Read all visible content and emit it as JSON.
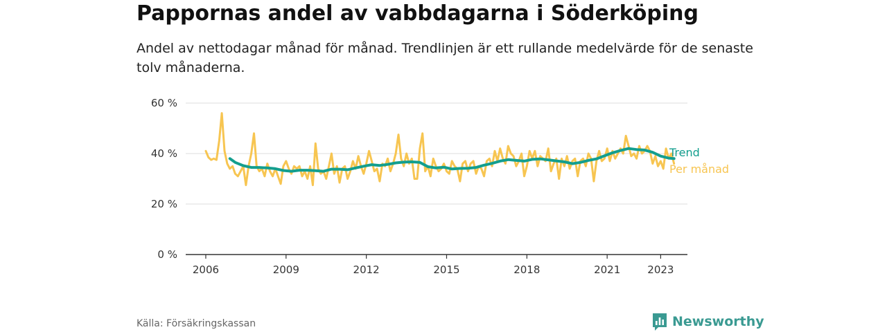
{
  "chart_data": {
    "type": "line",
    "title": "Pappornas andel av vabbdagarna i Söderköping",
    "subtitle": "Andel av nettodagar månad för månad. Trendlinjen är ett rullande medelvärde för de senaste tolv månaderna.",
    "xlabel": "",
    "ylabel": "",
    "x_ticks": [
      2006,
      2009,
      2012,
      2015,
      2018,
      2021,
      2023
    ],
    "y_ticks": [
      0,
      20,
      40,
      60
    ],
    "y_tick_labels": [
      "0 %",
      "20 %",
      "40 %",
      "60 %"
    ],
    "ylim": [
      0,
      60
    ],
    "xlim": [
      2005.25,
      2024.0
    ],
    "grid": true,
    "legend": "inline labels at right end of lines",
    "series": [
      {
        "name": "Trend",
        "color": "#139e8e",
        "points": [
          [
            2006.9,
            38
          ],
          [
            2007.1,
            36.5
          ],
          [
            2007.4,
            35.2
          ],
          [
            2007.7,
            34.5
          ],
          [
            2008.0,
            34.5
          ],
          [
            2008.3,
            34.3
          ],
          [
            2008.6,
            34.0
          ],
          [
            2008.9,
            33.3
          ],
          [
            2009.2,
            33.0
          ],
          [
            2009.5,
            33.4
          ],
          [
            2009.8,
            33.4
          ],
          [
            2010.1,
            33.2
          ],
          [
            2010.4,
            33.0
          ],
          [
            2010.7,
            33.8
          ],
          [
            2011.0,
            33.8
          ],
          [
            2011.3,
            33.6
          ],
          [
            2011.6,
            34.3
          ],
          [
            2011.9,
            35.0
          ],
          [
            2012.2,
            35.6
          ],
          [
            2012.5,
            35.3
          ],
          [
            2012.8,
            35.7
          ],
          [
            2013.1,
            36.3
          ],
          [
            2013.4,
            36.6
          ],
          [
            2013.7,
            36.7
          ],
          [
            2014.0,
            36.5
          ],
          [
            2014.3,
            34.8
          ],
          [
            2014.6,
            34.3
          ],
          [
            2014.9,
            34.6
          ],
          [
            2015.2,
            33.9
          ],
          [
            2015.5,
            34.1
          ],
          [
            2015.8,
            34.2
          ],
          [
            2016.1,
            34.5
          ],
          [
            2016.4,
            35.4
          ],
          [
            2016.7,
            36.1
          ],
          [
            2017.0,
            37.0
          ],
          [
            2017.3,
            37.6
          ],
          [
            2017.6,
            37.3
          ],
          [
            2017.9,
            37.0
          ],
          [
            2018.2,
            37.7
          ],
          [
            2018.5,
            37.9
          ],
          [
            2018.8,
            37.5
          ],
          [
            2019.1,
            37.1
          ],
          [
            2019.4,
            36.7
          ],
          [
            2019.7,
            36.0
          ],
          [
            2020.0,
            36.5
          ],
          [
            2020.3,
            37.3
          ],
          [
            2020.6,
            37.9
          ],
          [
            2020.9,
            39.1
          ],
          [
            2021.2,
            40.3
          ],
          [
            2021.5,
            41.2
          ],
          [
            2021.8,
            42.0
          ],
          [
            2022.1,
            41.6
          ],
          [
            2022.4,
            41.4
          ],
          [
            2022.7,
            40.5
          ],
          [
            2023.0,
            39.0
          ],
          [
            2023.3,
            38.2
          ],
          [
            2023.5,
            38.0
          ]
        ]
      },
      {
        "name": "Per månad",
        "color": "#f7c551",
        "points": [
          [
            2006.0,
            41
          ],
          [
            2006.1,
            38.5
          ],
          [
            2006.2,
            37.5
          ],
          [
            2006.3,
            38
          ],
          [
            2006.4,
            37.5
          ],
          [
            2006.5,
            45
          ],
          [
            2006.6,
            56
          ],
          [
            2006.7,
            41
          ],
          [
            2006.8,
            36
          ],
          [
            2006.9,
            34
          ],
          [
            2007.0,
            35
          ],
          [
            2007.1,
            32
          ],
          [
            2007.2,
            31
          ],
          [
            2007.3,
            33
          ],
          [
            2007.4,
            35
          ],
          [
            2007.5,
            27.5
          ],
          [
            2007.6,
            35
          ],
          [
            2007.7,
            40
          ],
          [
            2007.8,
            48
          ],
          [
            2007.9,
            35
          ],
          [
            2008.0,
            33
          ],
          [
            2008.1,
            34
          ],
          [
            2008.2,
            31
          ],
          [
            2008.3,
            36
          ],
          [
            2008.4,
            33
          ],
          [
            2008.5,
            31
          ],
          [
            2008.6,
            34
          ],
          [
            2008.7,
            31
          ],
          [
            2008.8,
            28
          ],
          [
            2008.9,
            35
          ],
          [
            2009.0,
            37
          ],
          [
            2009.1,
            34
          ],
          [
            2009.2,
            32
          ],
          [
            2009.3,
            35
          ],
          [
            2009.4,
            34
          ],
          [
            2009.5,
            35
          ],
          [
            2009.6,
            31
          ],
          [
            2009.7,
            33
          ],
          [
            2009.8,
            30
          ],
          [
            2009.9,
            35
          ],
          [
            2010.0,
            27.5
          ],
          [
            2010.1,
            44
          ],
          [
            2010.2,
            34
          ],
          [
            2010.3,
            32
          ],
          [
            2010.4,
            33
          ],
          [
            2010.5,
            30
          ],
          [
            2010.6,
            35
          ],
          [
            2010.7,
            40
          ],
          [
            2010.8,
            32
          ],
          [
            2010.9,
            35
          ],
          [
            2011.0,
            28.5
          ],
          [
            2011.1,
            34
          ],
          [
            2011.2,
            35
          ],
          [
            2011.3,
            30
          ],
          [
            2011.4,
            33
          ],
          [
            2011.5,
            37
          ],
          [
            2011.6,
            34
          ],
          [
            2011.7,
            39
          ],
          [
            2011.8,
            35
          ],
          [
            2011.9,
            32
          ],
          [
            2012.0,
            36
          ],
          [
            2012.1,
            41
          ],
          [
            2012.2,
            37
          ],
          [
            2012.3,
            33
          ],
          [
            2012.4,
            34
          ],
          [
            2012.5,
            29
          ],
          [
            2012.6,
            36
          ],
          [
            2012.7,
            35
          ],
          [
            2012.8,
            38
          ],
          [
            2012.9,
            33
          ],
          [
            2013.0,
            36
          ],
          [
            2013.1,
            40
          ],
          [
            2013.2,
            47.5
          ],
          [
            2013.3,
            38
          ],
          [
            2013.4,
            35
          ],
          [
            2013.5,
            40
          ],
          [
            2013.6,
            36
          ],
          [
            2013.7,
            38
          ],
          [
            2013.8,
            30
          ],
          [
            2013.9,
            30
          ],
          [
            2014.0,
            42
          ],
          [
            2014.1,
            48
          ],
          [
            2014.2,
            33
          ],
          [
            2014.3,
            35
          ],
          [
            2014.4,
            31
          ],
          [
            2014.5,
            38
          ],
          [
            2014.6,
            35
          ],
          [
            2014.7,
            33
          ],
          [
            2014.8,
            34
          ],
          [
            2014.9,
            36
          ],
          [
            2015.0,
            33
          ],
          [
            2015.1,
            32
          ],
          [
            2015.2,
            37
          ],
          [
            2015.3,
            35
          ],
          [
            2015.4,
            34
          ],
          [
            2015.5,
            29
          ],
          [
            2015.6,
            36
          ],
          [
            2015.7,
            37
          ],
          [
            2015.8,
            33
          ],
          [
            2015.9,
            36
          ],
          [
            2016.0,
            37
          ],
          [
            2016.1,
            32
          ],
          [
            2016.2,
            35
          ],
          [
            2016.3,
            34
          ],
          [
            2016.4,
            31
          ],
          [
            2016.5,
            37
          ],
          [
            2016.6,
            38
          ],
          [
            2016.7,
            35
          ],
          [
            2016.8,
            41
          ],
          [
            2016.9,
            37
          ],
          [
            2017.0,
            42
          ],
          [
            2017.1,
            38
          ],
          [
            2017.2,
            36
          ],
          [
            2017.3,
            43
          ],
          [
            2017.4,
            40
          ],
          [
            2017.5,
            39
          ],
          [
            2017.6,
            35
          ],
          [
            2017.7,
            37
          ],
          [
            2017.8,
            40
          ],
          [
            2017.9,
            31
          ],
          [
            2018.0,
            35
          ],
          [
            2018.1,
            41
          ],
          [
            2018.2,
            38
          ],
          [
            2018.3,
            41
          ],
          [
            2018.4,
            35
          ],
          [
            2018.5,
            39
          ],
          [
            2018.6,
            38
          ],
          [
            2018.7,
            37
          ],
          [
            2018.8,
            42
          ],
          [
            2018.9,
            33
          ],
          [
            2019.0,
            36
          ],
          [
            2019.1,
            38
          ],
          [
            2019.2,
            30
          ],
          [
            2019.3,
            38
          ],
          [
            2019.4,
            35
          ],
          [
            2019.5,
            39
          ],
          [
            2019.6,
            34
          ],
          [
            2019.7,
            37
          ],
          [
            2019.8,
            38
          ],
          [
            2019.9,
            31
          ],
          [
            2020.0,
            37
          ],
          [
            2020.1,
            38
          ],
          [
            2020.2,
            35
          ],
          [
            2020.3,
            40
          ],
          [
            2020.4,
            38
          ],
          [
            2020.5,
            29
          ],
          [
            2020.6,
            37
          ],
          [
            2020.7,
            41
          ],
          [
            2020.8,
            37
          ],
          [
            2020.9,
            38
          ],
          [
            2021.0,
            42
          ],
          [
            2021.1,
            37
          ],
          [
            2021.2,
            41
          ],
          [
            2021.3,
            38
          ],
          [
            2021.4,
            40
          ],
          [
            2021.5,
            42
          ],
          [
            2021.6,
            40
          ],
          [
            2021.7,
            47
          ],
          [
            2021.8,
            43
          ],
          [
            2021.9,
            39
          ],
          [
            2022.0,
            40
          ],
          [
            2022.1,
            38
          ],
          [
            2022.2,
            43
          ],
          [
            2022.3,
            40
          ],
          [
            2022.4,
            41
          ],
          [
            2022.5,
            43
          ],
          [
            2022.6,
            41
          ],
          [
            2022.7,
            36
          ],
          [
            2022.8,
            39
          ],
          [
            2022.9,
            35
          ],
          [
            2023.0,
            37
          ],
          [
            2023.1,
            34
          ],
          [
            2023.2,
            42
          ],
          [
            2023.3,
            38
          ],
          [
            2023.4,
            40
          ],
          [
            2023.5,
            36
          ]
        ]
      }
    ],
    "source": "Källa: Försäkringskassan",
    "brand": "Newsworthy"
  }
}
